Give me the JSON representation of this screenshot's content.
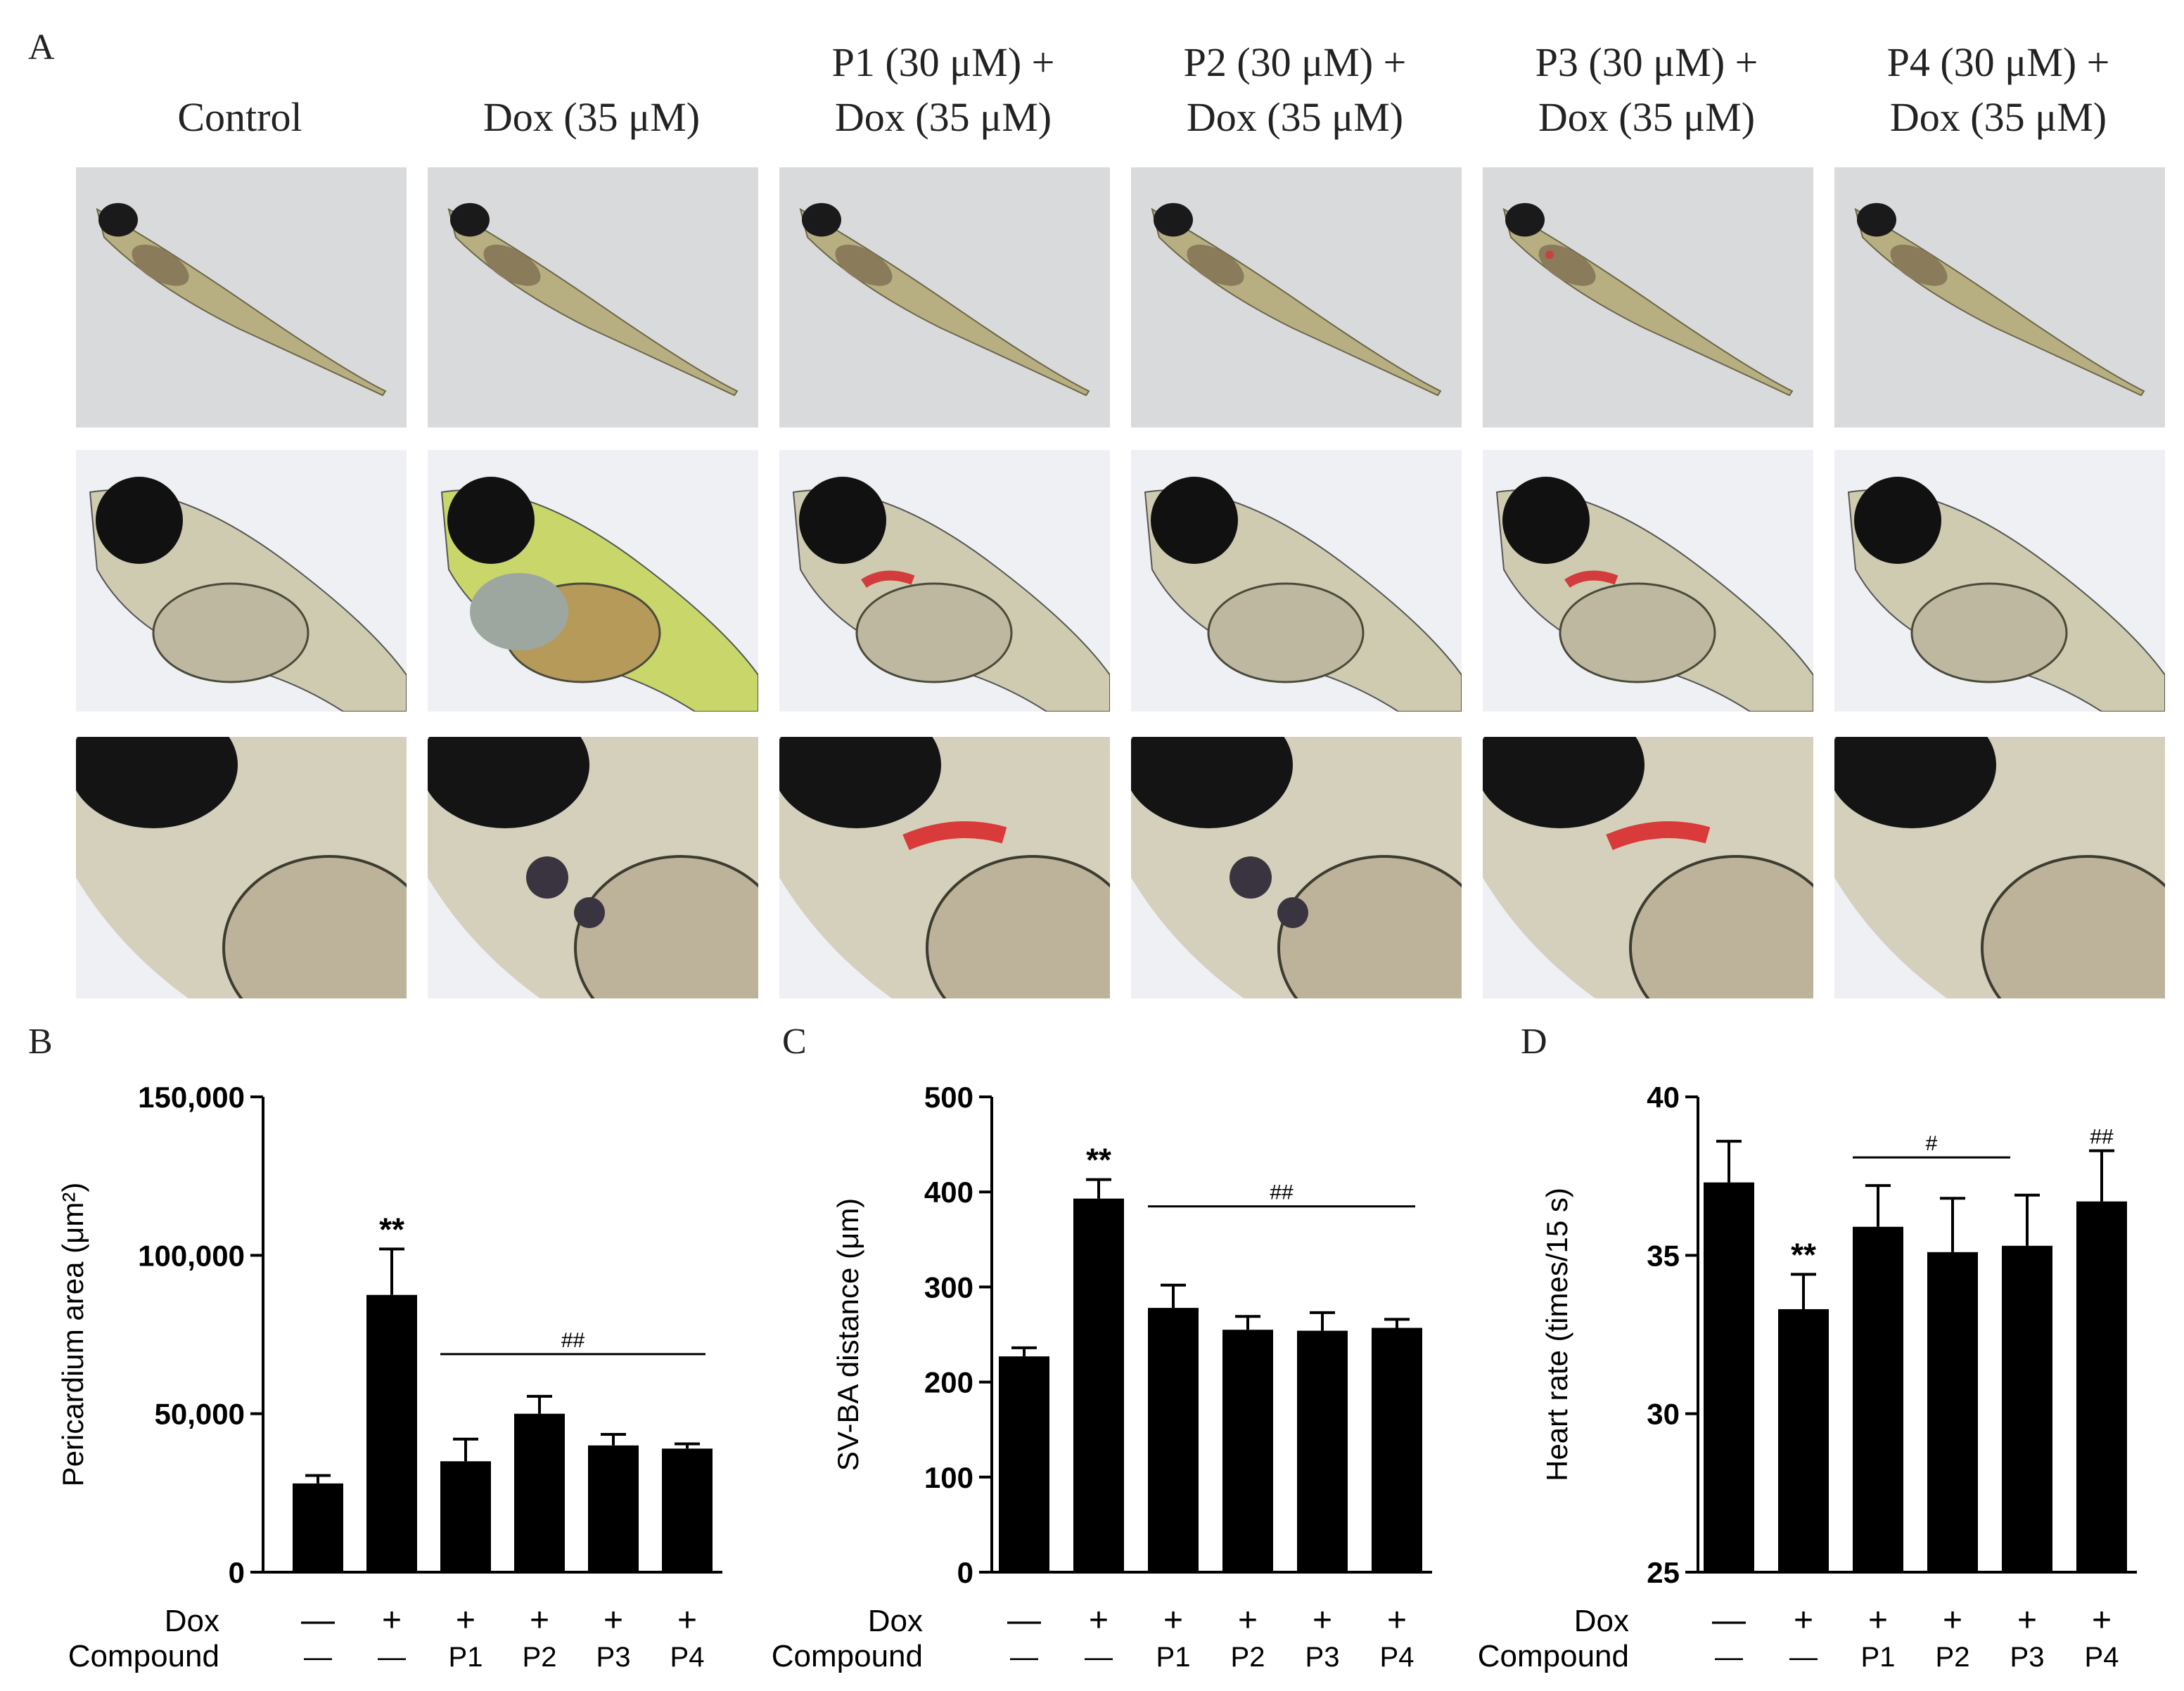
{
  "panel_labels": {
    "A": "A",
    "B": "B",
    "C": "C",
    "D": "D"
  },
  "columns": [
    {
      "line1": "Control",
      "line2": ""
    },
    {
      "line1": "Dox (35 μM)",
      "line2": ""
    },
    {
      "line1": "P1 (30 μM) +",
      "line2": "Dox (35 μM)"
    },
    {
      "line1": "P2 (30 μM) +",
      "line2": "Dox (35 μM)"
    },
    {
      "line1": "P3 (30 μM) +",
      "line2": "Dox (35 μM)"
    },
    {
      "line1": "P4 (30 μM) +",
      "line2": "Dox (35 μM)"
    }
  ],
  "photo_rows": [
    "whole-larva",
    "head-region",
    "heart-closeup"
  ],
  "group_rows": {
    "dox_label": "Dox",
    "compound_label": "Compound",
    "dox": [
      "—",
      "+",
      "+",
      "+",
      "+",
      "+"
    ],
    "compound": [
      "—",
      "—",
      "P1",
      "P2",
      "P3",
      "P4"
    ]
  },
  "chart_data": [
    {
      "panel": "B",
      "type": "bar",
      "ylabel": "Pericardium area (μm²)",
      "ylim": [
        0,
        150000
      ],
      "yticks": [
        0,
        50000,
        100000,
        150000
      ],
      "ytick_labels": [
        "0",
        "50,000",
        "100,000",
        "150,000"
      ],
      "categories": [
        "Control",
        "Dox",
        "P1+Dox",
        "P2+Dox",
        "P3+Dox",
        "P4+Dox"
      ],
      "values": [
        28000,
        87500,
        35000,
        50000,
        40000,
        39000
      ],
      "errors": [
        2500,
        14500,
        7000,
        5500,
        3500,
        1500
      ],
      "annotation": {
        "text": "**",
        "index": 1
      },
      "bracket": {
        "text": "##",
        "from": 2,
        "to": 5
      }
    },
    {
      "panel": "C",
      "type": "bar",
      "ylabel": "SV-BA distance (μm)",
      "ylim": [
        0,
        500
      ],
      "yticks": [
        0,
        100,
        200,
        300,
        400,
        500
      ],
      "ytick_labels": [
        "0",
        "100",
        "200",
        "300",
        "400",
        "500"
      ],
      "categories": [
        "Control",
        "Dox",
        "P1+Dox",
        "P2+Dox",
        "P3+Dox",
        "P4+Dox"
      ],
      "values": [
        227,
        393,
        278,
        255,
        254,
        257
      ],
      "errors": [
        9,
        20,
        24,
        14,
        19,
        9
      ],
      "annotation": {
        "text": "**",
        "index": 1
      },
      "bracket": {
        "text": "##",
        "from": 2,
        "to": 5
      }
    },
    {
      "panel": "D",
      "type": "bar",
      "ylabel": "Heart rate (times/15 s)",
      "ylim": [
        25,
        40
      ],
      "yticks": [
        25,
        30,
        35,
        40
      ],
      "ytick_labels": [
        "25",
        "30",
        "35",
        "40"
      ],
      "categories": [
        "Control",
        "Dox",
        "P1+Dox",
        "P2+Dox",
        "P3+Dox",
        "P4+Dox"
      ],
      "values": [
        37.3,
        33.3,
        35.9,
        35.1,
        35.3,
        36.7
      ],
      "errors": [
        1.3,
        1.1,
        1.3,
        1.7,
        1.6,
        1.6
      ],
      "annotation": {
        "text": "**",
        "index": 1
      },
      "bracket": {
        "text": "#",
        "from": 2,
        "to": 4
      },
      "extra_annotation": {
        "text": "##",
        "index": 5
      }
    }
  ]
}
